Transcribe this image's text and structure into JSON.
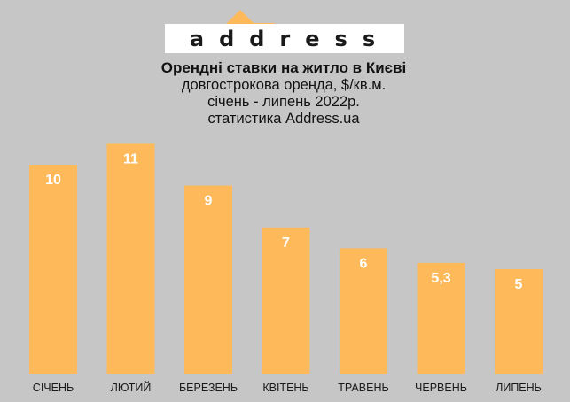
{
  "logo": {
    "text": "address",
    "accent": "#fdb95a"
  },
  "title": "Орендні ставки на житло в Києві",
  "subtitle_lines": [
    "довгострокова оренда, $/кв.м.",
    "січень - липень 2022р.",
    "статистика Address.ua"
  ],
  "chart_data": {
    "type": "bar",
    "title": "Орендні ставки на житло в Києві",
    "xlabel": "",
    "ylabel": "",
    "ylim": [
      0,
      11
    ],
    "grid": false,
    "categories": [
      "СІЧЕНЬ",
      "ЛЮТИЙ",
      "БЕРЕЗЕНЬ",
      "КВІТЕНЬ",
      "ТРАВЕНЬ",
      "ЧЕРВЕНЬ",
      "ЛИПЕНЬ"
    ],
    "values": [
      10,
      11,
      9,
      7,
      6,
      5.3,
      5
    ],
    "value_labels": [
      "10",
      "11",
      "9",
      "7",
      "6",
      "5,3",
      "5"
    ],
    "bar_color": "#fdb95a",
    "background": "#c6c6c6"
  }
}
